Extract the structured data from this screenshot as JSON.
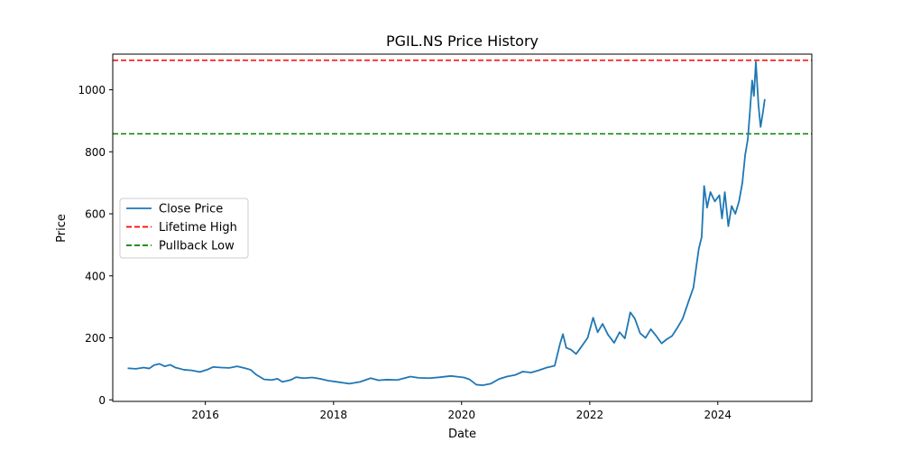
{
  "chart_data": {
    "type": "line",
    "title": "PGIL.NS Price History",
    "xlabel": "Date",
    "ylabel": "Price",
    "xlim": [
      "2014-07-22",
      "2025-06-20"
    ],
    "ylim": [
      -5,
      1115
    ],
    "x_ticks": [
      "2016-01-01",
      "2018-01-01",
      "2020-01-01",
      "2022-01-01",
      "2024-01-01"
    ],
    "x_tick_labels": [
      "2016",
      "2018",
      "2020",
      "2022",
      "2024"
    ],
    "y_ticks": [
      0,
      200,
      400,
      600,
      800,
      1000
    ],
    "y_tick_labels": [
      "0",
      "200",
      "400",
      "600",
      "800",
      "1000"
    ],
    "grid": false,
    "legend": {
      "placement": "center-left",
      "entries": [
        "Close Price",
        "Lifetime High",
        "Pullback Low"
      ]
    },
    "series": [
      {
        "name": "Close Price",
        "color": "#1f77b4",
        "style": "solid",
        "points": [
          [
            "2014-10-15",
            102
          ],
          [
            "2014-12-01",
            100
          ],
          [
            "2015-01-15",
            104
          ],
          [
            "2015-02-15",
            101
          ],
          [
            "2015-03-15",
            112
          ],
          [
            "2015-04-15",
            116
          ],
          [
            "2015-05-15",
            108
          ],
          [
            "2015-06-15",
            113
          ],
          [
            "2015-07-15",
            104
          ],
          [
            "2015-09-01",
            97
          ],
          [
            "2015-10-15",
            95
          ],
          [
            "2015-12-01",
            90
          ],
          [
            "2016-01-15",
            98
          ],
          [
            "2016-02-15",
            106
          ],
          [
            "2016-04-01",
            104
          ],
          [
            "2016-05-15",
            103
          ],
          [
            "2016-07-01",
            108
          ],
          [
            "2016-08-15",
            102
          ],
          [
            "2016-09-15",
            97
          ],
          [
            "2016-10-15",
            82
          ],
          [
            "2016-12-01",
            66
          ],
          [
            "2017-01-15",
            64
          ],
          [
            "2017-02-15",
            68
          ],
          [
            "2017-03-15",
            58
          ],
          [
            "2017-05-01",
            64
          ],
          [
            "2017-06-01",
            73
          ],
          [
            "2017-07-15",
            70
          ],
          [
            "2017-09-01",
            72
          ],
          [
            "2017-10-15",
            68
          ],
          [
            "2017-12-01",
            62
          ],
          [
            "2018-02-01",
            57
          ],
          [
            "2018-04-01",
            52
          ],
          [
            "2018-06-01",
            58
          ],
          [
            "2018-08-01",
            70
          ],
          [
            "2018-09-15",
            63
          ],
          [
            "2018-11-01",
            65
          ],
          [
            "2019-01-01",
            64
          ],
          [
            "2019-03-15",
            75
          ],
          [
            "2019-05-01",
            71
          ],
          [
            "2019-07-01",
            70
          ],
          [
            "2019-09-01",
            73
          ],
          [
            "2019-11-01",
            77
          ],
          [
            "2020-01-15",
            72
          ],
          [
            "2020-02-15",
            66
          ],
          [
            "2020-03-25",
            49
          ],
          [
            "2020-05-01",
            47
          ],
          [
            "2020-06-15",
            52
          ],
          [
            "2020-08-01",
            67
          ],
          [
            "2020-09-15",
            75
          ],
          [
            "2020-11-01",
            80
          ],
          [
            "2020-12-15",
            91
          ],
          [
            "2021-02-01",
            88
          ],
          [
            "2021-03-15",
            95
          ],
          [
            "2021-05-01",
            104
          ],
          [
            "2021-06-15",
            110
          ],
          [
            "2021-07-15",
            180
          ],
          [
            "2021-08-01",
            212
          ],
          [
            "2021-08-20",
            168
          ],
          [
            "2021-09-15",
            162
          ],
          [
            "2021-10-15",
            148
          ],
          [
            "2021-11-15",
            172
          ],
          [
            "2021-12-20",
            200
          ],
          [
            "2022-01-20",
            265
          ],
          [
            "2022-02-15",
            218
          ],
          [
            "2022-03-15",
            245
          ],
          [
            "2022-04-15",
            210
          ],
          [
            "2022-05-20",
            184
          ],
          [
            "2022-06-20",
            218
          ],
          [
            "2022-07-20",
            198
          ],
          [
            "2022-08-20",
            282
          ],
          [
            "2022-09-15",
            262
          ],
          [
            "2022-10-15",
            215
          ],
          [
            "2022-11-15",
            200
          ],
          [
            "2022-12-15",
            228
          ],
          [
            "2023-01-15",
            206
          ],
          [
            "2023-02-15",
            182
          ],
          [
            "2023-03-15",
            195
          ],
          [
            "2023-04-15",
            206
          ],
          [
            "2023-05-15",
            232
          ],
          [
            "2023-06-15",
            262
          ],
          [
            "2023-07-15",
            312
          ],
          [
            "2023-08-15",
            362
          ],
          [
            "2023-09-01",
            432
          ],
          [
            "2023-09-15",
            488
          ],
          [
            "2023-10-01",
            525
          ],
          [
            "2023-10-15",
            690
          ],
          [
            "2023-11-01",
            620
          ],
          [
            "2023-11-20",
            670
          ],
          [
            "2023-12-15",
            640
          ],
          [
            "2024-01-10",
            660
          ],
          [
            "2024-01-25",
            585
          ],
          [
            "2024-02-10",
            670
          ],
          [
            "2024-03-01",
            560
          ],
          [
            "2024-03-20",
            625
          ],
          [
            "2024-04-10",
            600
          ],
          [
            "2024-05-01",
            640
          ],
          [
            "2024-05-20",
            700
          ],
          [
            "2024-06-05",
            790
          ],
          [
            "2024-06-20",
            840
          ],
          [
            "2024-07-01",
            920
          ],
          [
            "2024-07-15",
            1030
          ],
          [
            "2024-07-25",
            980
          ],
          [
            "2024-08-05",
            1090
          ],
          [
            "2024-08-20",
            950
          ],
          [
            "2024-09-01",
            880
          ],
          [
            "2024-09-15",
            930
          ],
          [
            "2024-09-25",
            970
          ]
        ]
      },
      {
        "name": "Lifetime High",
        "color": "#ff0000",
        "style": "dashed",
        "y": 1095
      },
      {
        "name": "Pullback Low",
        "color": "#008000",
        "style": "dashed",
        "y": 858
      }
    ]
  }
}
